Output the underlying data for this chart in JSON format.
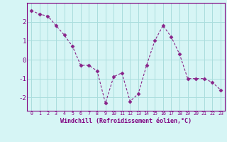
{
  "x": [
    0,
    1,
    2,
    3,
    4,
    5,
    6,
    7,
    8,
    9,
    10,
    11,
    12,
    13,
    14,
    15,
    16,
    17,
    18,
    19,
    20,
    21,
    22,
    23
  ],
  "y": [
    2.6,
    2.4,
    2.3,
    1.8,
    1.3,
    0.7,
    -0.3,
    -0.3,
    -0.6,
    -2.3,
    -0.9,
    -0.7,
    -2.2,
    -1.8,
    -0.3,
    1.0,
    1.8,
    1.2,
    0.3,
    -1.0,
    -1.0,
    -1.0,
    -1.2,
    -1.6
  ],
  "line_color": "#882288",
  "marker": "D",
  "marker_size": 2.5,
  "bg_color": "#d6f5f5",
  "grid_color": "#aadddd",
  "axis_color": "#800080",
  "tick_color": "#800080",
  "xlabel": "Windchill (Refroidissement éolien,°C)",
  "ylim_min": -2.7,
  "ylim_max": 3.0,
  "xlim_min": -0.5,
  "xlim_max": 23.5,
  "yticks": [
    -2,
    -1,
    0,
    1,
    2
  ],
  "xticks": [
    0,
    1,
    2,
    3,
    4,
    5,
    6,
    7,
    8,
    9,
    10,
    11,
    12,
    13,
    14,
    15,
    16,
    17,
    18,
    19,
    20,
    21,
    22,
    23
  ]
}
